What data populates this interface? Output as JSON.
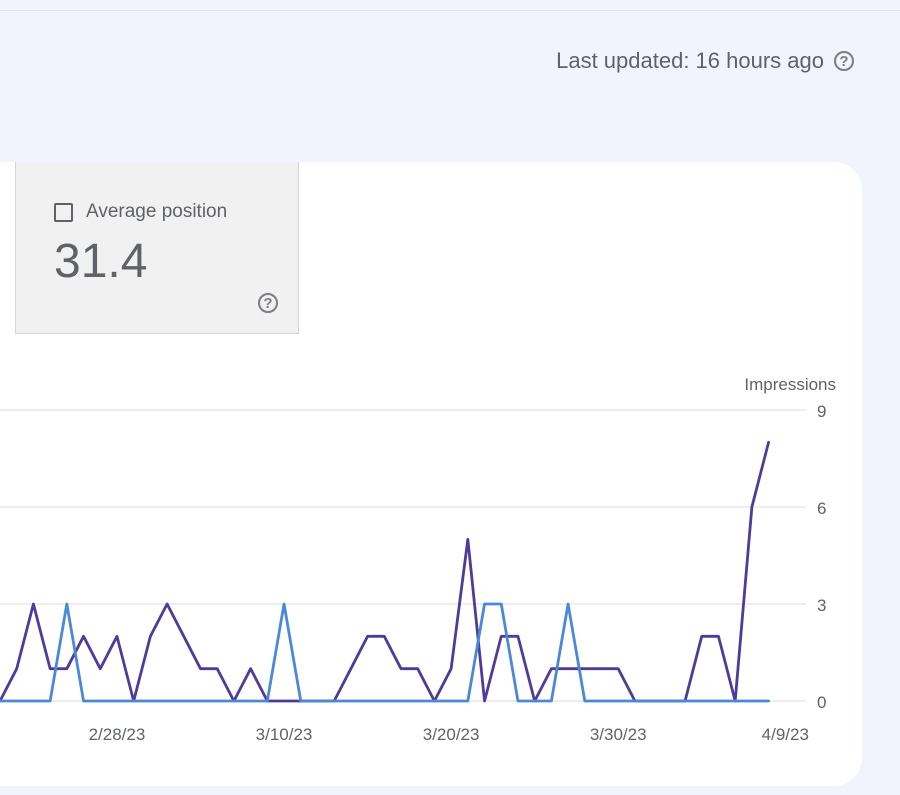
{
  "header": {
    "last_updated": "Last updated: 16 hours ago"
  },
  "metric": {
    "label": "Average position",
    "value": "31.4",
    "checked": false
  },
  "icons": {
    "help": "help-circle-icon",
    "checkbox": "checkbox-unchecked-icon"
  },
  "chart_data": {
    "type": "line",
    "title": "",
    "xlabel": "",
    "ylabel": "Impressions",
    "ylim": [
      0,
      9
    ],
    "y_ticks": [
      0,
      3,
      6,
      9
    ],
    "x_tick_labels": [
      "2/28/23",
      "3/10/23",
      "3/20/23",
      "3/30/23",
      "4/9/23"
    ],
    "x_tick_days": [
      5,
      15,
      25,
      35,
      45
    ],
    "x_visible_range": [
      -2,
      46
    ],
    "grid": true,
    "legend": "none",
    "series": [
      {
        "color": "#4f3b9b",
        "x": [
          -2,
          -1,
          0,
          1,
          2,
          3,
          4,
          5,
          6,
          7,
          8,
          9,
          10,
          11,
          12,
          13,
          14,
          15,
          16,
          17,
          18,
          19,
          20,
          21,
          22,
          23,
          24,
          25,
          26,
          27,
          28,
          29,
          30,
          31,
          32,
          33,
          34,
          35,
          36,
          37,
          38,
          39,
          40,
          41,
          42,
          43,
          44,
          45
        ],
        "values": [
          0,
          1,
          3,
          1,
          1,
          2,
          1,
          2,
          0,
          2,
          3,
          2,
          1,
          1,
          0,
          1,
          0,
          0,
          0,
          0,
          0,
          1,
          2,
          2,
          1,
          1,
          0,
          1,
          5,
          0,
          2,
          2,
          0,
          1,
          1,
          1,
          1,
          1,
          0,
          0,
          0,
          0,
          2,
          2,
          0,
          6,
          8,
          null
        ]
      },
      {
        "color": "#4a88da",
        "x": [
          -2,
          -1,
          0,
          1,
          2,
          3,
          4,
          5,
          6,
          7,
          8,
          9,
          10,
          11,
          12,
          13,
          14,
          15,
          16,
          17,
          18,
          19,
          20,
          21,
          22,
          23,
          24,
          25,
          26,
          27,
          28,
          29,
          30,
          31,
          32,
          33,
          34,
          35,
          36,
          37,
          38,
          39,
          40,
          41,
          42,
          43,
          44,
          45
        ],
        "values": [
          0,
          0,
          0,
          0,
          3,
          0,
          0,
          0,
          0,
          0,
          0,
          0,
          0,
          0,
          0,
          0,
          0,
          3,
          0,
          0,
          0,
          0,
          0,
          0,
          0,
          0,
          0,
          0,
          0,
          3,
          3,
          0,
          0,
          0,
          3,
          0,
          0,
          0,
          0,
          0,
          0,
          0,
          0,
          0,
          0,
          0,
          0,
          null
        ]
      }
    ]
  }
}
